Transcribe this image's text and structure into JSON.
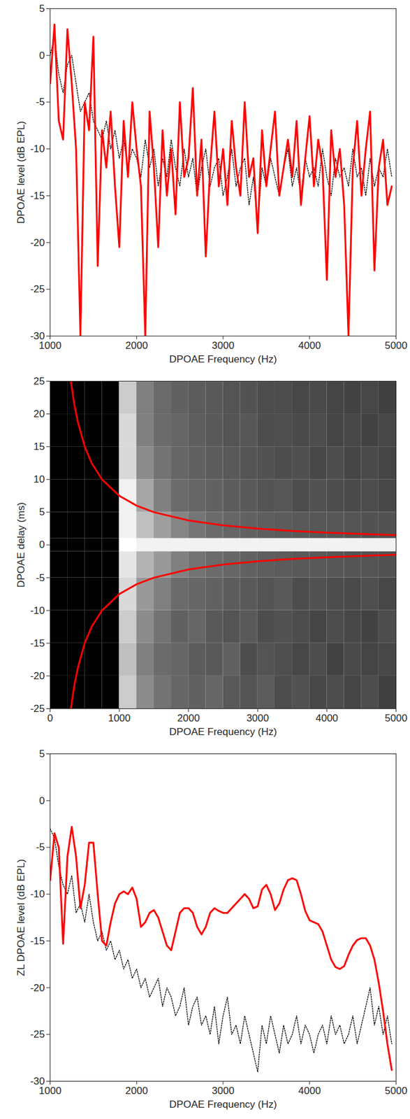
{
  "chart_data": [
    {
      "type": "line",
      "x_label": "DPOAE Frequency (Hz)",
      "y_label": "DPOAE level (dB EPL)",
      "xlim": [
        1000,
        5000
      ],
      "xticks": [
        1000,
        2000,
        3000,
        4000,
        5000
      ],
      "ylim": [
        -30,
        5
      ],
      "yticks": [
        -30,
        -25,
        -20,
        -15,
        -10,
        -5,
        0,
        5
      ],
      "grid": false,
      "x": [
        1000,
        1050,
        1100,
        1150,
        1200,
        1250,
        1300,
        1350,
        1400,
        1450,
        1500,
        1550,
        1600,
        1650,
        1700,
        1750,
        1800,
        1850,
        1900,
        1950,
        2000,
        2050,
        2100,
        2150,
        2200,
        2250,
        2300,
        2350,
        2400,
        2450,
        2500,
        2550,
        2600,
        2650,
        2700,
        2750,
        2800,
        2850,
        2900,
        2950,
        3000,
        3050,
        3100,
        3150,
        3200,
        3250,
        3300,
        3350,
        3400,
        3450,
        3500,
        3550,
        3600,
        3650,
        3700,
        3750,
        3800,
        3850,
        3900,
        3950,
        4000,
        4050,
        4100,
        4150,
        4200,
        4250,
        4300,
        4350,
        4400,
        4450,
        4500,
        4550,
        4600,
        4650,
        4700,
        4750,
        4800,
        4850,
        4900,
        4950
      ],
      "series": [
        {
          "color": "#000000",
          "line_style": "dotted",
          "values": [
            0,
            2,
            -2,
            -4,
            -1,
            0,
            -3,
            -6,
            -5,
            -4,
            -7,
            -8,
            -9,
            -7,
            -10,
            -8,
            -11,
            -9,
            -12,
            -10,
            -11,
            -13,
            -9,
            -12,
            -10,
            -14,
            -11,
            -13,
            -9,
            -12,
            -14,
            -10,
            -13,
            -11,
            -15,
            -12,
            -10,
            -14,
            -12,
            -11,
            -15,
            -13,
            -10,
            -14,
            -12,
            -11,
            -16,
            -13,
            -18,
            -12,
            -14,
            -11,
            -13,
            -15,
            -12,
            -10,
            -14,
            -12,
            -15,
            -11,
            -13,
            -12,
            -14,
            -10,
            -13,
            -15,
            -11,
            -13,
            -12,
            -14,
            -10,
            -13,
            -12,
            -15,
            -11,
            -14,
            -12,
            -13,
            -10,
            -13
          ]
        },
        {
          "color": "#ff0000",
          "line_style": "solid",
          "values": [
            -3,
            3.3,
            -7,
            -9,
            2.8,
            -3,
            -10,
            -30,
            -5,
            -8,
            2,
            -22.5,
            -8,
            -12,
            -6,
            -14,
            -20.5,
            -7,
            -13,
            -5,
            -10,
            -14,
            -30,
            -6,
            -12,
            -20.5,
            -8,
            -15,
            -10,
            -17,
            -5,
            -13,
            -11,
            -3.5,
            -15,
            -9,
            -21.5,
            -12,
            -6,
            -14,
            -10,
            -16,
            -7,
            -12,
            -15,
            -5,
            -13,
            -11,
            -19,
            -8,
            -14,
            -10,
            -6,
            -15,
            -12,
            -9,
            -13,
            -7,
            -16,
            -11,
            -6.5,
            -14,
            -9,
            -12,
            -24,
            -8,
            -13,
            -10,
            -16,
            -30,
            -12,
            -7,
            -15,
            -10,
            -6,
            -23,
            -12,
            -9,
            -16,
            -14
          ]
        }
      ]
    },
    {
      "type": "heatmap",
      "x_label": "DPOAE Frequency (Hz)",
      "y_label": "DPOAE delay (ms)",
      "xlim": [
        0,
        5000
      ],
      "xticks": [
        0,
        1000,
        2000,
        3000,
        4000,
        5000
      ],
      "ylim": [
        -25,
        25
      ],
      "yticks": [
        -25,
        -20,
        -15,
        -10,
        -5,
        0,
        5,
        10,
        15,
        20,
        25
      ],
      "grid": false,
      "x_bins": [
        0,
        250,
        500,
        750,
        1000,
        1250,
        1500,
        1750,
        2000,
        2250,
        2500,
        2750,
        3000,
        3250,
        3500,
        3750,
        4000,
        4250,
        4500,
        4750,
        5000
      ],
      "y_bins": [
        -25,
        -20,
        -15,
        -10,
        -5,
        -1,
        1,
        5,
        10,
        15,
        20,
        25
      ],
      "zlim": [
        0,
        1
      ],
      "colors": [
        "#000000",
        "#ffffff"
      ],
      "cells": [
        [
          0,
          0,
          0,
          0,
          0.8,
          0.55,
          0.45,
          0.4,
          0.38,
          0.4,
          0.35,
          0.33,
          0.36,
          0.3,
          0.32,
          0.28,
          0.3,
          0.27,
          0.3,
          0.25
        ],
        [
          0,
          0,
          0,
          0,
          0.75,
          0.5,
          0.42,
          0.4,
          0.36,
          0.35,
          0.38,
          0.3,
          0.33,
          0.31,
          0.28,
          0.3,
          0.26,
          0.29,
          0.27,
          0.28
        ],
        [
          0,
          0,
          0,
          0,
          0.8,
          0.55,
          0.45,
          0.38,
          0.4,
          0.35,
          0.33,
          0.35,
          0.3,
          0.32,
          0.3,
          0.27,
          0.3,
          0.28,
          0.26,
          0.3
        ],
        [
          0,
          0,
          0,
          0,
          0.85,
          0.6,
          0.5,
          0.42,
          0.4,
          0.38,
          0.36,
          0.35,
          0.33,
          0.35,
          0.3,
          0.32,
          0.3,
          0.29,
          0.31,
          0.28
        ],
        [
          0,
          0,
          0,
          0,
          0.9,
          0.7,
          0.6,
          0.5,
          0.45,
          0.42,
          0.4,
          0.38,
          0.37,
          0.36,
          0.35,
          0.35,
          0.34,
          0.33,
          0.33,
          0.32
        ],
        [
          0,
          0,
          0,
          0,
          1,
          0.95,
          0.95,
          0.95,
          0.95,
          0.95,
          0.95,
          0.95,
          0.95,
          0.95,
          0.95,
          0.95,
          0.95,
          0.95,
          0.95,
          0.95
        ],
        [
          0,
          0,
          0,
          0,
          0.95,
          0.75,
          0.62,
          0.52,
          0.46,
          0.42,
          0.4,
          0.38,
          0.37,
          0.36,
          0.35,
          0.34,
          0.34,
          0.33,
          0.32,
          0.32
        ],
        [
          0,
          0,
          0,
          0,
          0.95,
          0.65,
          0.5,
          0.42,
          0.4,
          0.38,
          0.36,
          0.35,
          0.33,
          0.34,
          0.3,
          0.32,
          0.3,
          0.29,
          0.3,
          0.28
        ],
        [
          0,
          0,
          0,
          0,
          0.85,
          0.55,
          0.45,
          0.4,
          0.38,
          0.36,
          0.35,
          0.33,
          0.32,
          0.3,
          0.31,
          0.28,
          0.3,
          0.27,
          0.29,
          0.27
        ],
        [
          0,
          0,
          0,
          0,
          0.85,
          0.5,
          0.42,
          0.4,
          0.37,
          0.35,
          0.33,
          0.34,
          0.3,
          0.31,
          0.29,
          0.3,
          0.27,
          0.28,
          0.26,
          0.28
        ],
        [
          0,
          0,
          0,
          0,
          0.8,
          0.5,
          0.42,
          0.38,
          0.36,
          0.35,
          0.33,
          0.32,
          0.3,
          0.3,
          0.28,
          0.29,
          0.27,
          0.26,
          0.28,
          0.25
        ]
      ],
      "x": [
        300,
        350,
        400,
        500,
        600,
        750,
        1000,
        1250,
        1500,
        2000,
        2500,
        3000,
        3500,
        4000,
        4500,
        5000
      ],
      "series": [
        {
          "type": "line",
          "color": "#ff0000",
          "line_style": "solid",
          "values": [
            25,
            21.4,
            18.8,
            15,
            12.5,
            10,
            7.5,
            6,
            5,
            3.75,
            3,
            2.5,
            2.14,
            1.88,
            1.67,
            1.5
          ]
        },
        {
          "type": "line",
          "color": "#ff0000",
          "line_style": "solid",
          "values": [
            -25,
            -21.4,
            -18.8,
            -15,
            -12.5,
            -10,
            -7.5,
            -6,
            -5,
            -3.75,
            -3,
            -2.5,
            -2.14,
            -1.88,
            -1.67,
            -1.5
          ]
        }
      ]
    },
    {
      "type": "line",
      "x_label": "DPOAE Frequency (Hz)",
      "y_label": "ZL DPOAE level (dB EPL)",
      "xlim": [
        1000,
        5000
      ],
      "xticks": [
        1000,
        2000,
        3000,
        4000,
        5000
      ],
      "ylim": [
        -30,
        5
      ],
      "yticks": [
        -30,
        -25,
        -20,
        -15,
        -10,
        -5,
        0,
        5
      ],
      "grid": false,
      "x": [
        1000,
        1050,
        1100,
        1150,
        1200,
        1250,
        1300,
        1350,
        1400,
        1450,
        1500,
        1550,
        1600,
        1650,
        1700,
        1750,
        1800,
        1850,
        1900,
        1950,
        2000,
        2050,
        2100,
        2150,
        2200,
        2250,
        2300,
        2350,
        2400,
        2450,
        2500,
        2550,
        2600,
        2650,
        2700,
        2750,
        2800,
        2850,
        2900,
        2950,
        3000,
        3050,
        3100,
        3150,
        3200,
        3250,
        3300,
        3350,
        3400,
        3450,
        3500,
        3550,
        3600,
        3650,
        3700,
        3750,
        3800,
        3850,
        3900,
        3950,
        4000,
        4050,
        4100,
        4150,
        4200,
        4250,
        4300,
        4350,
        4400,
        4450,
        4500,
        4550,
        4600,
        4650,
        4700,
        4750,
        4800,
        4850,
        4900,
        4950
      ],
      "series": [
        {
          "color": "#000000",
          "line_style": "dotted",
          "values": [
            -3,
            -4,
            -7,
            -9,
            -10,
            -8,
            -12,
            -11,
            -13,
            -10,
            -13,
            -15,
            -14,
            -16,
            -15,
            -17,
            -16,
            -18,
            -17,
            -19,
            -18,
            -20,
            -19,
            -21,
            -20,
            -19,
            -22,
            -20,
            -21,
            -23,
            -22,
            -20,
            -24,
            -22,
            -21,
            -24,
            -23,
            -25,
            -22,
            -26,
            -23,
            -21,
            -25,
            -24,
            -26,
            -23,
            -25,
            -27,
            -29,
            -24,
            -26,
            -23,
            -25,
            -27,
            -24,
            -26,
            -25,
            -23,
            -26,
            -24,
            -25,
            -27,
            -25,
            -24,
            -26,
            -23,
            -25,
            -24,
            -26,
            -25,
            -23,
            -26,
            -24,
            -22,
            -20,
            -24,
            -22,
            -25,
            -23,
            -26
          ]
        },
        {
          "color": "#ff0000",
          "line_style": "solid",
          "values": [
            -8.5,
            -3.5,
            -5,
            -15.3,
            -6,
            -2.8,
            -6,
            -11.5,
            -9,
            -4.5,
            -4.5,
            -10,
            -15,
            -15.5,
            -13,
            -11,
            -10,
            -9.7,
            -10,
            -9.3,
            -10.5,
            -13.5,
            -13,
            -12,
            -11.7,
            -12.5,
            -14,
            -15.5,
            -16,
            -14,
            -12,
            -11.5,
            -11.5,
            -12,
            -13.5,
            -14.3,
            -13.5,
            -12,
            -11.5,
            -11.8,
            -12,
            -12,
            -11.5,
            -11,
            -10.5,
            -10,
            -10.5,
            -11.5,
            -11.3,
            -9.5,
            -9,
            -10,
            -11.7,
            -11,
            -9.5,
            -8.5,
            -8.3,
            -8.5,
            -10,
            -11.8,
            -12.8,
            -13,
            -13.2,
            -14,
            -15.5,
            -17,
            -17.8,
            -18,
            -17.7,
            -16.5,
            -15.5,
            -14.9,
            -14.7,
            -14.7,
            -15.5,
            -17,
            -19.5,
            -22.5,
            -26,
            -28.8
          ]
        }
      ]
    }
  ]
}
